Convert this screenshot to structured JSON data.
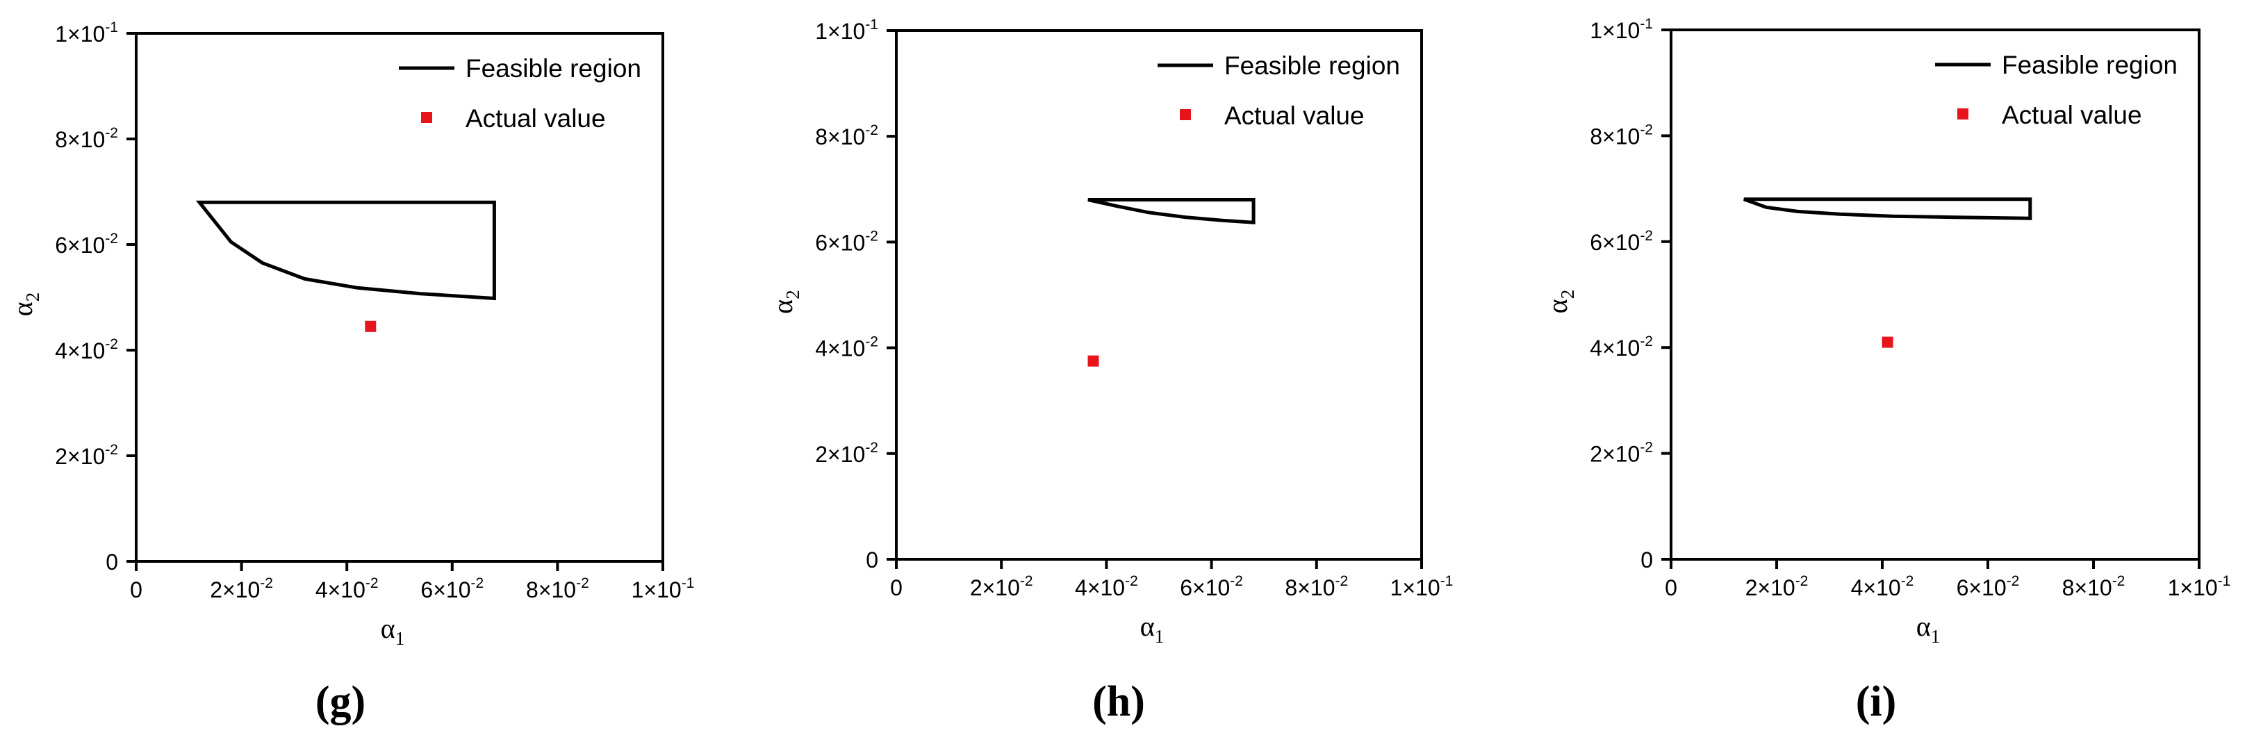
{
  "chart_data": [
    {
      "type": "line",
      "panel_label": "(g)",
      "xlabel": "α",
      "xlabel_sub": "1",
      "ylabel": "α",
      "ylabel_sub": "2",
      "xlim": [
        0,
        0.1
      ],
      "ylim": [
        0,
        0.1
      ],
      "ticks": [
        {
          "value": 0,
          "mantissa": "0",
          "exp": ""
        },
        {
          "value": 0.02,
          "mantissa": "2×10",
          "exp": "-2"
        },
        {
          "value": 0.04,
          "mantissa": "4×10",
          "exp": "-2"
        },
        {
          "value": 0.06,
          "mantissa": "6×10",
          "exp": "-2"
        },
        {
          "value": 0.08,
          "mantissa": "8×10",
          "exp": "-2"
        },
        {
          "value": 0.1,
          "mantissa": "1×10",
          "exp": "-1"
        }
      ],
      "legend": {
        "position": "top-right",
        "items": [
          "Feasible region",
          "Actual value"
        ]
      },
      "series": [
        {
          "name": "Feasible region",
          "kind": "closed-line",
          "x": [
            0.012,
            0.018,
            0.024,
            0.032,
            0.042,
            0.054,
            0.068,
            0.068,
            0.012
          ],
          "y": [
            0.068,
            0.0605,
            0.0565,
            0.0535,
            0.0518,
            0.0507,
            0.0498,
            0.068,
            0.068
          ]
        },
        {
          "name": "Actual value",
          "kind": "point",
          "x": [
            0.0445
          ],
          "y": [
            0.0445
          ]
        }
      ],
      "grid": false
    },
    {
      "type": "line",
      "panel_label": "(h)",
      "xlabel": "α",
      "xlabel_sub": "1",
      "ylabel": "α",
      "ylabel_sub": "2",
      "xlim": [
        0,
        0.1
      ],
      "ylim": [
        0,
        0.1
      ],
      "ticks": [
        {
          "value": 0,
          "mantissa": "0",
          "exp": ""
        },
        {
          "value": 0.02,
          "mantissa": "2×10",
          "exp": "-2"
        },
        {
          "value": 0.04,
          "mantissa": "4×10",
          "exp": "-2"
        },
        {
          "value": 0.06,
          "mantissa": "6×10",
          "exp": "-2"
        },
        {
          "value": 0.08,
          "mantissa": "8×10",
          "exp": "-2"
        },
        {
          "value": 0.1,
          "mantissa": "1×10",
          "exp": "-1"
        }
      ],
      "legend": {
        "position": "top-right",
        "items": [
          "Feasible region",
          "Actual value"
        ]
      },
      "series": [
        {
          "name": "Feasible region",
          "kind": "closed-line",
          "x": [
            0.0365,
            0.042,
            0.048,
            0.055,
            0.062,
            0.068,
            0.068,
            0.0365
          ],
          "y": [
            0.068,
            0.0668,
            0.0656,
            0.0647,
            0.0641,
            0.0637,
            0.068,
            0.068
          ]
        },
        {
          "name": "Actual value",
          "kind": "point",
          "x": [
            0.0375
          ],
          "y": [
            0.0375
          ]
        }
      ],
      "grid": false
    },
    {
      "type": "line",
      "panel_label": "(i)",
      "xlabel": "α",
      "xlabel_sub": "1",
      "ylabel": "α",
      "ylabel_sub": "2",
      "xlim": [
        0,
        0.1
      ],
      "ylim": [
        0,
        0.1
      ],
      "ticks": [
        {
          "value": 0,
          "mantissa": "0",
          "exp": ""
        },
        {
          "value": 0.02,
          "mantissa": "2×10",
          "exp": "-2"
        },
        {
          "value": 0.04,
          "mantissa": "4×10",
          "exp": "-2"
        },
        {
          "value": 0.06,
          "mantissa": "6×10",
          "exp": "-2"
        },
        {
          "value": 0.08,
          "mantissa": "8×10",
          "exp": "-2"
        },
        {
          "value": 0.1,
          "mantissa": "1×10",
          "exp": "-1"
        }
      ],
      "legend": {
        "position": "top-right",
        "items": [
          "Feasible region",
          "Actual value"
        ]
      },
      "series": [
        {
          "name": "Feasible region",
          "kind": "closed-line",
          "x": [
            0.0138,
            0.018,
            0.024,
            0.032,
            0.042,
            0.054,
            0.068,
            0.068,
            0.0138
          ],
          "y": [
            0.068,
            0.0665,
            0.0657,
            0.0652,
            0.0648,
            0.0646,
            0.0644,
            0.068,
            0.068
          ]
        },
        {
          "name": "Actual value",
          "kind": "point",
          "x": [
            0.041
          ],
          "y": [
            0.041
          ]
        }
      ],
      "grid": false
    }
  ],
  "colors": {
    "line": "#000000",
    "point": "#e8141b"
  }
}
